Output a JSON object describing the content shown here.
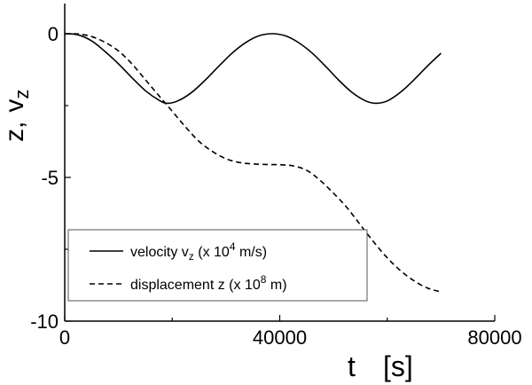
{
  "chart_data": {
    "type": "line",
    "xlabel_symbol": "t",
    "xlabel_unit": "[s]",
    "ylabel_main": "z,",
    "ylabel_v": "v",
    "ylabel_sub": "z",
    "xlim": [
      0,
      80000
    ],
    "ylim": [
      -10,
      1
    ],
    "xticks": [
      0,
      40000,
      80000
    ],
    "xtick_labels": [
      "0",
      "40000",
      "80000"
    ],
    "yticks": [
      0,
      -5,
      -10
    ],
    "ytick_labels": [
      "0",
      "-5",
      "-10"
    ],
    "grid": false,
    "legend_position": "lower-left",
    "series": [
      {
        "legend_prefix": "velocity v",
        "legend_sub": "z",
        "legend_mid": " (x 10",
        "legend_sup": "4",
        "legend_suffix": " m/s)",
        "style": "solid",
        "color": "#000000",
        "x": [
          0,
          2500,
          5000,
          7500,
          10000,
          12500,
          15000,
          17500,
          19000,
          21000,
          23500,
          26000,
          28500,
          31000,
          33500,
          36000,
          38500,
          41000,
          43500,
          46000,
          48500,
          51000,
          53500,
          56000,
          57900,
          60000,
          62500,
          65000,
          67500,
          70000
        ],
        "y": [
          0,
          -0.04,
          -0.25,
          -0.62,
          -1.05,
          -1.53,
          -1.98,
          -2.31,
          -2.42,
          -2.34,
          -2.06,
          -1.64,
          -1.16,
          -0.7,
          -0.33,
          -0.08,
          0,
          -0.07,
          -0.31,
          -0.67,
          -1.13,
          -1.62,
          -2.05,
          -2.34,
          -2.42,
          -2.34,
          -2.03,
          -1.6,
          -1.12,
          -0.68
        ]
      },
      {
        "legend_prefix": "displacement  z  (x 10",
        "legend_sup": "8",
        "legend_suffix": " m)",
        "style": "dashed",
        "color": "#000000",
        "x": [
          0,
          2500,
          5000,
          7500,
          10000,
          12500,
          15000,
          17500,
          20000,
          22500,
          25000,
          27500,
          30000,
          32500,
          35000,
          37500,
          40000,
          42500,
          45000,
          47500,
          50000,
          52500,
          55000,
          57500,
          60000,
          62500,
          65000,
          67500,
          70000
        ],
        "y": [
          0,
          -0.01,
          -0.1,
          -0.3,
          -0.6,
          -1.05,
          -1.6,
          -2.15,
          -2.7,
          -3.25,
          -3.75,
          -4.1,
          -4.35,
          -4.48,
          -4.53,
          -4.55,
          -4.56,
          -4.6,
          -4.75,
          -5.1,
          -5.55,
          -6.05,
          -6.65,
          -7.25,
          -7.8,
          -8.25,
          -8.6,
          -8.85,
          -8.98
        ]
      }
    ]
  }
}
